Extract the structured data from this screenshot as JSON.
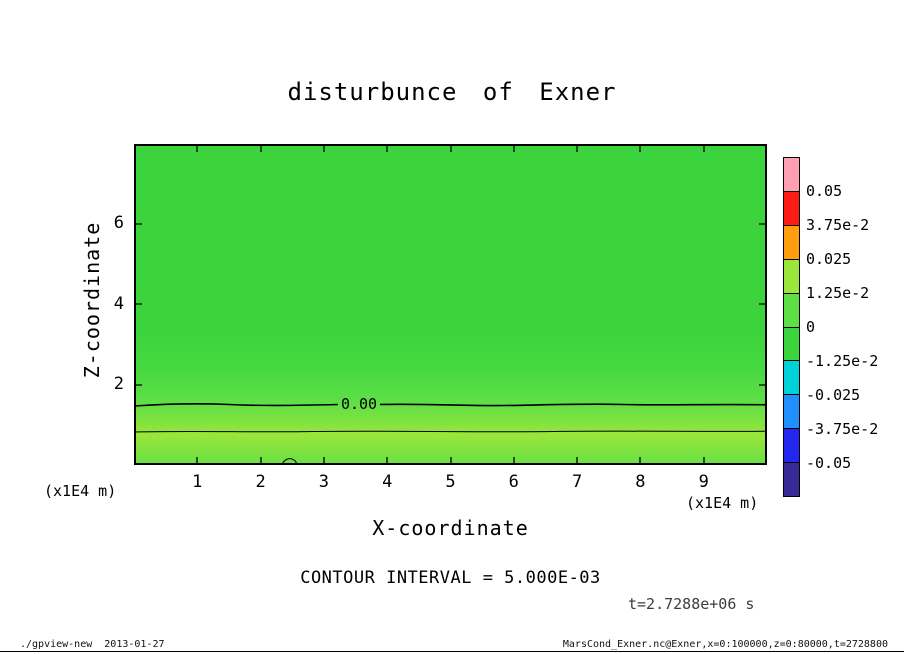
{
  "title": "disturbunce of Exner",
  "axes": {
    "x_label": "X-coordinate",
    "z_label": "Z-coordinate",
    "x_unit": "(x1E4 m)",
    "z_unit": "(x1E4 m)",
    "x_ticks": [
      "1",
      "2",
      "3",
      "4",
      "5",
      "6",
      "7",
      "8",
      "9"
    ],
    "z_ticks": [
      "2",
      "4",
      "6"
    ]
  },
  "colorbar": {
    "labels": [
      "0.05",
      "3.75e-2",
      "0.025",
      "1.25e-2",
      "0",
      "-1.25e-2",
      "-0.025",
      "-3.75e-2",
      "-0.05"
    ],
    "colors": [
      "#ff9fb1",
      "#fb1d14",
      "#ff9d0c",
      "#9ae63b",
      "#5fdf46",
      "#3cd43c",
      "#00d0d8",
      "#2090ff",
      "#2326ee",
      "#372a96"
    ]
  },
  "annotations": {
    "contour_label": "0.00",
    "contour_interval": "CONTOUR INTERVAL = 5.000E-03",
    "time": "t=2.7288e+06 s"
  },
  "footer": {
    "left": "./gpview-new  2013-01-27",
    "right": "MarsCond_Exner.nc@Exner,x=0:100000,z=0:80000,t=2728800"
  },
  "chart_data": {
    "type": "heatmap",
    "title": "disturbunce of Exner",
    "xlabel": "X-coordinate (x1E4 m)",
    "ylabel": "Z-coordinate (x1E4 m)",
    "xlim": [
      0,
      10
    ],
    "ylim": [
      0,
      8
    ],
    "x_ticks": [
      1,
      2,
      3,
      4,
      5,
      6,
      7,
      8,
      9
    ],
    "y_ticks": [
      2,
      4,
      6
    ],
    "shade_boundaries": [
      0.05,
      0.0375,
      0.025,
      0.0125,
      0,
      -0.0125,
      -0.025,
      -0.0375,
      -0.05
    ],
    "contour_interval": 0.005,
    "time_seconds": "2.7288e+06",
    "legend_position": "right colorbar",
    "grid": false,
    "contours": [
      {
        "value": 0.0,
        "z_location": 1.55,
        "labeled": true
      },
      {
        "value": 0.005,
        "z_location": 0.85,
        "labeled": false
      }
    ],
    "field_bands": [
      {
        "z_range": [
          3.0,
          8.0
        ],
        "value_range": [
          -0.0125,
          0
        ],
        "shade": "green (0 cell)"
      },
      {
        "z_range": [
          1.55,
          3.0
        ],
        "value_range": [
          -0.005,
          0
        ],
        "shade": "green, slight gradient"
      },
      {
        "z_range": [
          0.85,
          1.55
        ],
        "value_range": [
          0,
          0.005
        ],
        "shade": "light green"
      },
      {
        "z_range": [
          0.35,
          0.85
        ],
        "value_range": [
          0.005,
          0.013
        ],
        "shade": "yellow-green maximum layer"
      },
      {
        "z_range": [
          0,
          0.35
        ],
        "value_range": [
          0,
          0.005
        ],
        "shade": "light green"
      }
    ]
  }
}
